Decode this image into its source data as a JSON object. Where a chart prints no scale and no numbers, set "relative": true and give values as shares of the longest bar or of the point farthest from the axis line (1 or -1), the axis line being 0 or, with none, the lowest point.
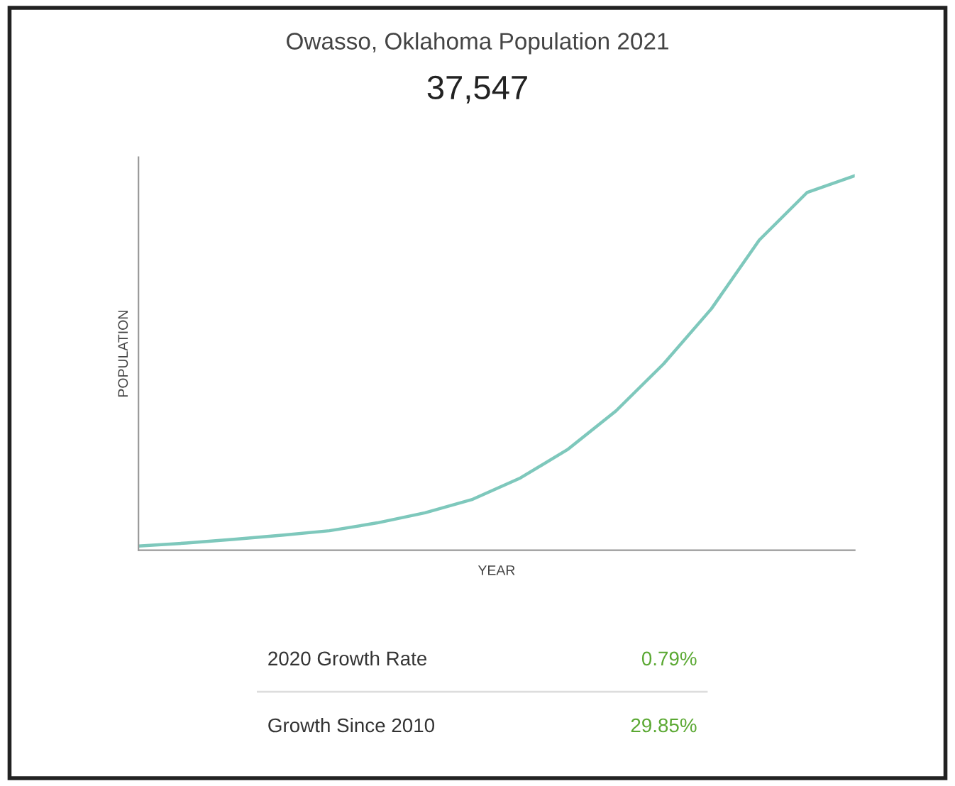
{
  "chart_data": {
    "type": "line",
    "title": "Owasso, Oklahoma Population 2021",
    "subtitle": "37,547",
    "xlabel": "YEAR",
    "ylabel": "POPULATION",
    "relative": true,
    "categories": [
      null,
      null,
      null,
      null,
      null,
      null,
      null,
      null,
      null,
      null,
      null,
      null,
      null,
      null,
      null,
      null
    ],
    "series": [
      {
        "color": "#7ec8bc",
        "values": [
          0.011,
          0.019,
          0.029,
          0.04,
          0.052,
          0.073,
          0.1,
          0.136,
          0.193,
          0.27,
          0.372,
          0.498,
          0.645,
          0.828,
          0.955,
          1.0
        ]
      }
    ],
    "annotations": [
      "2020 Growth Rate",
      "0.79%",
      "Growth Since 2010",
      "29.85%"
    ]
  }
}
